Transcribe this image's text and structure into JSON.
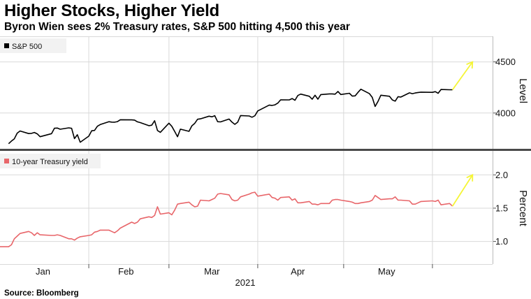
{
  "title": "Higher Stocks, Higher Yield",
  "subtitle": "Byron Wien sees 2% Treasury rates, S&P 500 hitting 4,500 this year",
  "source": "Source: Bloomberg",
  "colors": {
    "sp500_line": "#000000",
    "yield_line": "#e8666a",
    "projection_arrow": "#f5f536",
    "grid": "#d9d9d9",
    "panel_divider": "#4a4a4a"
  },
  "chart_data": [
    {
      "type": "line",
      "panel": "top",
      "legend": "S&P 500",
      "legend_position": "top-left",
      "ylabel": "Level",
      "y_ticks": [
        4000,
        4500
      ],
      "ylim": [
        3650,
        4750
      ],
      "grid": true,
      "series": [
        {
          "name": "S&P 500",
          "x": [
            "2021-01-04",
            "2021-01-05",
            "2021-01-06",
            "2021-01-07",
            "2021-01-08",
            "2021-01-11",
            "2021-01-12",
            "2021-01-13",
            "2021-01-14",
            "2021-01-15",
            "2021-01-19",
            "2021-01-20",
            "2021-01-21",
            "2021-01-22",
            "2021-01-25",
            "2021-01-26",
            "2021-01-27",
            "2021-01-28",
            "2021-01-29",
            "2021-02-01",
            "2021-02-02",
            "2021-02-03",
            "2021-02-04",
            "2021-02-05",
            "2021-02-08",
            "2021-02-09",
            "2021-02-10",
            "2021-02-11",
            "2021-02-12",
            "2021-02-16",
            "2021-02-17",
            "2021-02-18",
            "2021-02-19",
            "2021-02-22",
            "2021-02-23",
            "2021-02-24",
            "2021-02-25",
            "2021-02-26",
            "2021-03-01",
            "2021-03-02",
            "2021-03-03",
            "2021-03-04",
            "2021-03-05",
            "2021-03-08",
            "2021-03-09",
            "2021-03-10",
            "2021-03-11",
            "2021-03-12",
            "2021-03-15",
            "2021-03-16",
            "2021-03-17",
            "2021-03-18",
            "2021-03-19",
            "2021-03-22",
            "2021-03-23",
            "2021-03-24",
            "2021-03-25",
            "2021-03-26",
            "2021-03-29",
            "2021-03-30",
            "2021-03-31",
            "2021-04-01",
            "2021-04-05",
            "2021-04-06",
            "2021-04-07",
            "2021-04-08",
            "2021-04-09",
            "2021-04-12",
            "2021-04-13",
            "2021-04-14",
            "2021-04-15",
            "2021-04-16",
            "2021-04-19",
            "2021-04-20",
            "2021-04-21",
            "2021-04-22",
            "2021-04-23",
            "2021-04-26",
            "2021-04-27",
            "2021-04-28",
            "2021-04-29",
            "2021-04-30",
            "2021-05-03",
            "2021-05-04",
            "2021-05-05",
            "2021-05-06",
            "2021-05-07",
            "2021-05-10",
            "2021-05-11",
            "2021-05-12",
            "2021-05-13",
            "2021-05-14",
            "2021-05-17",
            "2021-05-18",
            "2021-05-19",
            "2021-05-20",
            "2021-05-21",
            "2021-05-24",
            "2021-05-25",
            "2021-05-26",
            "2021-05-27",
            "2021-05-28",
            "2021-06-01",
            "2021-06-02",
            "2021-06-03",
            "2021-06-04",
            "2021-06-07",
            "2021-06-08"
          ],
          "values": [
            3700,
            3726,
            3748,
            3803,
            3824,
            3799,
            3801,
            3810,
            3796,
            3768,
            3798,
            3851,
            3853,
            3841,
            3855,
            3850,
            3750,
            3787,
            3714,
            3774,
            3826,
            3830,
            3871,
            3887,
            3915,
            3911,
            3910,
            3916,
            3934,
            3933,
            3931,
            3914,
            3906,
            3876,
            3881,
            3925,
            3829,
            3811,
            3901,
            3870,
            3820,
            3768,
            3842,
            3821,
            3875,
            3899,
            3939,
            3943,
            3969,
            3963,
            3974,
            3915,
            3913,
            3941,
            3911,
            3889,
            3910,
            3975,
            3971,
            3959,
            3973,
            4020,
            4078,
            4074,
            4080,
            4097,
            4129,
            4128,
            4141,
            4125,
            4171,
            4185,
            4164,
            4135,
            4174,
            4135,
            4180,
            4187,
            4187,
            4184,
            4211,
            4181,
            4193,
            4165,
            4168,
            4202,
            4233,
            4189,
            4153,
            4064,
            4113,
            4174,
            4164,
            4128,
            4116,
            4160,
            4156,
            4197,
            4189,
            4196,
            4201,
            4204,
            4202,
            4209,
            4193,
            4230,
            4227,
            4227
          ]
        },
        {
          "name": "Projection",
          "x": [
            "2021-06-08",
            "2021-06-15"
          ],
          "values": [
            4227,
            4500
          ]
        }
      ]
    },
    {
      "type": "line",
      "panel": "bottom",
      "legend": "10-year Treasury yield",
      "legend_position": "top-left",
      "ylabel": "Percent",
      "y_ticks": [
        1.0,
        1.5,
        2.0
      ],
      "ylim": [
        0.66,
        2.36
      ],
      "grid": true,
      "x_ticks": [
        "Jan",
        "Feb",
        "Mar",
        "Apr",
        "May"
      ],
      "x_year": "2021",
      "series": [
        {
          "name": "10-year Treasury yield",
          "x": [
            "2021-01-01",
            "2021-01-04",
            "2021-01-05",
            "2021-01-06",
            "2021-01-07",
            "2021-01-08",
            "2021-01-11",
            "2021-01-12",
            "2021-01-13",
            "2021-01-14",
            "2021-01-15",
            "2021-01-19",
            "2021-01-20",
            "2021-01-21",
            "2021-01-22",
            "2021-01-25",
            "2021-01-26",
            "2021-01-27",
            "2021-01-28",
            "2021-01-29",
            "2021-02-01",
            "2021-02-02",
            "2021-02-03",
            "2021-02-04",
            "2021-02-05",
            "2021-02-08",
            "2021-02-09",
            "2021-02-10",
            "2021-02-11",
            "2021-02-12",
            "2021-02-16",
            "2021-02-17",
            "2021-02-18",
            "2021-02-19",
            "2021-02-22",
            "2021-02-23",
            "2021-02-24",
            "2021-02-25",
            "2021-02-26",
            "2021-03-01",
            "2021-03-02",
            "2021-03-03",
            "2021-03-04",
            "2021-03-05",
            "2021-03-08",
            "2021-03-09",
            "2021-03-10",
            "2021-03-11",
            "2021-03-12",
            "2021-03-15",
            "2021-03-16",
            "2021-03-17",
            "2021-03-18",
            "2021-03-19",
            "2021-03-22",
            "2021-03-23",
            "2021-03-24",
            "2021-03-25",
            "2021-03-26",
            "2021-03-29",
            "2021-03-30",
            "2021-03-31",
            "2021-04-01",
            "2021-04-05",
            "2021-04-06",
            "2021-04-07",
            "2021-04-08",
            "2021-04-09",
            "2021-04-12",
            "2021-04-13",
            "2021-04-14",
            "2021-04-15",
            "2021-04-16",
            "2021-04-19",
            "2021-04-20",
            "2021-04-21",
            "2021-04-22",
            "2021-04-23",
            "2021-04-26",
            "2021-04-27",
            "2021-04-28",
            "2021-04-29",
            "2021-04-30",
            "2021-05-03",
            "2021-05-04",
            "2021-05-05",
            "2021-05-06",
            "2021-05-07",
            "2021-05-10",
            "2021-05-11",
            "2021-05-12",
            "2021-05-13",
            "2021-05-14",
            "2021-05-17",
            "2021-05-18",
            "2021-05-19",
            "2021-05-20",
            "2021-05-21",
            "2021-05-24",
            "2021-05-25",
            "2021-05-26",
            "2021-05-27",
            "2021-05-28",
            "2021-06-01",
            "2021-06-02",
            "2021-06-03",
            "2021-06-04",
            "2021-06-07",
            "2021-06-08"
          ],
          "values": [
            0.92,
            0.92,
            0.95,
            1.04,
            1.08,
            1.12,
            1.15,
            1.13,
            1.09,
            1.13,
            1.1,
            1.09,
            1.09,
            1.1,
            1.09,
            1.04,
            1.04,
            1.02,
            1.05,
            1.07,
            1.09,
            1.1,
            1.14,
            1.15,
            1.17,
            1.17,
            1.15,
            1.13,
            1.16,
            1.2,
            1.29,
            1.27,
            1.29,
            1.34,
            1.37,
            1.36,
            1.39,
            1.52,
            1.41,
            1.43,
            1.4,
            1.47,
            1.56,
            1.57,
            1.59,
            1.55,
            1.52,
            1.53,
            1.62,
            1.61,
            1.63,
            1.65,
            1.71,
            1.72,
            1.7,
            1.63,
            1.61,
            1.62,
            1.67,
            1.71,
            1.73,
            1.74,
            1.68,
            1.71,
            1.66,
            1.65,
            1.62,
            1.66,
            1.67,
            1.62,
            1.64,
            1.58,
            1.58,
            1.6,
            1.56,
            1.56,
            1.55,
            1.57,
            1.57,
            1.62,
            1.63,
            1.63,
            1.62,
            1.6,
            1.59,
            1.57,
            1.57,
            1.58,
            1.6,
            1.62,
            1.69,
            1.66,
            1.63,
            1.64,
            1.64,
            1.67,
            1.62,
            1.62,
            1.61,
            1.56,
            1.56,
            1.58,
            1.6,
            1.61,
            1.6,
            1.62,
            1.55,
            1.57,
            1.53
          ]
        },
        {
          "name": "Projection",
          "x": [
            "2021-06-08",
            "2021-06-15"
          ],
          "values": [
            1.53,
            2.0
          ]
        }
      ]
    }
  ]
}
